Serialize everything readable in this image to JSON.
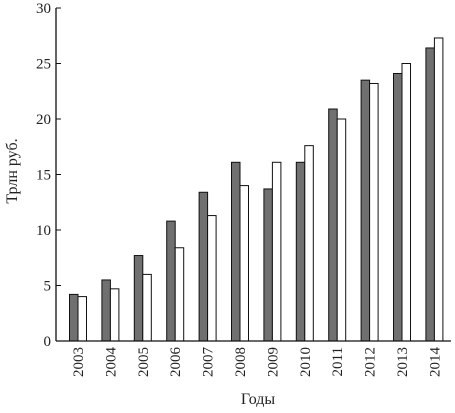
{
  "chart_data": {
    "type": "bar",
    "title": "",
    "xlabel": "Годы",
    "ylabel": "Трлн руб.",
    "ylim": [
      0,
      30
    ],
    "yticks": [
      0,
      5,
      10,
      15,
      20,
      25,
      30
    ],
    "grid": false,
    "legend": "none",
    "categories": [
      "2003",
      "2004",
      "2005",
      "2006",
      "2007",
      "2008",
      "2009",
      "2010",
      "2011",
      "2012",
      "2013",
      "2014"
    ],
    "series": [
      {
        "values": [
          4.2,
          5.5,
          7.7,
          10.8,
          13.4,
          16.1,
          13.7,
          16.1,
          20.9,
          23.5,
          24.1,
          26.4
        ],
        "color": "#707070"
      },
      {
        "values": [
          4.0,
          4.7,
          6.0,
          8.4,
          11.3,
          14.0,
          16.1,
          17.6,
          20.0,
          23.2,
          25.0,
          27.3
        ],
        "color": "#ffffff"
      }
    ]
  }
}
